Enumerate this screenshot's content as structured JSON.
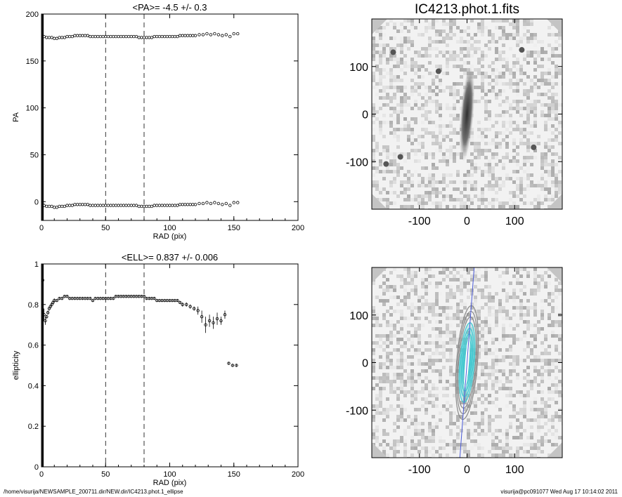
{
  "footer": {
    "left": "/home/visurija/NEWSAMPLE_200711.dir/NEW.dir/IC4213.phot.1_ellipse",
    "right": "visurija@pc091077  Wed Aug 17 10:14:02 2011"
  },
  "chart_data": [
    {
      "id": "pa",
      "type": "scatter",
      "title": "<PA>=  -4.5 +/-   0.3",
      "xlabel": "RAD (pix)",
      "ylabel": "PA",
      "xlim": [
        0,
        200
      ],
      "ylim": [
        -20,
        200
      ],
      "xticks": [
        0,
        50,
        100,
        150,
        200
      ],
      "yticks": [
        0,
        50,
        100,
        150,
        200
      ],
      "vlines": [
        50,
        80
      ],
      "series": [
        {
          "x": [
            2,
            4,
            6,
            8,
            10,
            12,
            14,
            16,
            18,
            20,
            22,
            24,
            26,
            28,
            30,
            32,
            34,
            36,
            38,
            40,
            42,
            44,
            46,
            48,
            50,
            52,
            54,
            56,
            58,
            60,
            62,
            64,
            66,
            68,
            70,
            72,
            74,
            76,
            78,
            80,
            82,
            84,
            86,
            88,
            90,
            92,
            94,
            96,
            98,
            100,
            102,
            104,
            106,
            108,
            110,
            112,
            114,
            116,
            118,
            120,
            123,
            126,
            129,
            132,
            135,
            138,
            141,
            144,
            147,
            150,
            153
          ],
          "y": [
            176,
            175,
            175,
            175,
            174,
            174,
            175,
            175,
            175,
            176,
            176,
            176,
            177,
            177,
            177,
            177,
            177,
            177,
            176,
            176,
            176,
            176,
            176,
            176,
            176,
            176,
            176,
            176,
            176,
            176,
            176,
            176,
            176,
            176,
            176,
            176,
            176,
            175,
            175,
            175,
            175,
            175,
            175,
            176,
            176,
            176,
            176,
            176,
            176,
            176,
            176,
            176,
            176,
            177,
            177,
            177,
            177,
            177,
            177,
            177,
            178,
            178,
            179,
            178,
            179,
            178,
            177,
            178,
            176,
            179,
            179
          ]
        },
        {
          "x": [
            2,
            4,
            6,
            8,
            10,
            12,
            14,
            16,
            18,
            20,
            22,
            24,
            26,
            28,
            30,
            32,
            34,
            36,
            38,
            40,
            42,
            44,
            46,
            48,
            50,
            52,
            54,
            56,
            58,
            60,
            62,
            64,
            66,
            68,
            70,
            72,
            74,
            76,
            78,
            80,
            82,
            84,
            86,
            88,
            90,
            92,
            94,
            96,
            98,
            100,
            102,
            104,
            106,
            108,
            110,
            112,
            114,
            116,
            118,
            120,
            123,
            126,
            129,
            132,
            135,
            138,
            141,
            144,
            147,
            150,
            153
          ],
          "y": [
            -4,
            -5,
            -5,
            -5,
            -6,
            -6,
            -5,
            -5,
            -5,
            -4,
            -4,
            -4,
            -3,
            -3,
            -3,
            -3,
            -3,
            -3,
            -4,
            -4,
            -4,
            -4,
            -4,
            -4,
            -4,
            -4,
            -4,
            -4,
            -4,
            -4,
            -4,
            -4,
            -4,
            -4,
            -4,
            -4,
            -4,
            -5,
            -5,
            -5,
            -5,
            -5,
            -5,
            -4,
            -4,
            -4,
            -4,
            -4,
            -4,
            -4,
            -4,
            -4,
            -4,
            -3,
            -3,
            -3,
            -3,
            -3,
            -3,
            -3,
            -2,
            -2,
            -1,
            -2,
            -1,
            -2,
            -3,
            -2,
            -4,
            -1,
            -1
          ]
        }
      ]
    },
    {
      "id": "ell",
      "type": "scatter",
      "title": "<ELL>= 0.837 +/-  0.006",
      "xlabel": "RAD (pix)",
      "ylabel": "ellipticity",
      "xlim": [
        0,
        200
      ],
      "ylim": [
        0.0,
        1.0
      ],
      "xticks": [
        0,
        50,
        100,
        150,
        200
      ],
      "yticks": [
        0.0,
        0.2,
        0.4,
        0.6,
        0.8,
        1.0
      ],
      "vlines": [
        50,
        80
      ],
      "series": [
        {
          "x": [
            1,
            2,
            3,
            4,
            5,
            6,
            7,
            8,
            9,
            10,
            12,
            14,
            16,
            18,
            20,
            22,
            24,
            26,
            28,
            30,
            32,
            34,
            36,
            38,
            40,
            42,
            44,
            46,
            48,
            50,
            52,
            54,
            56,
            58,
            60,
            62,
            64,
            66,
            68,
            70,
            72,
            74,
            76,
            78,
            80,
            82,
            84,
            86,
            88,
            90,
            92,
            94,
            96,
            98,
            100,
            102,
            104,
            106,
            108,
            110,
            113,
            116,
            119,
            122,
            125,
            128,
            131,
            134,
            137,
            140,
            143,
            146,
            149,
            152
          ],
          "y": [
            0.92,
            0.75,
            0.72,
            0.74,
            0.76,
            0.78,
            0.79,
            0.8,
            0.81,
            0.82,
            0.82,
            0.83,
            0.83,
            0.84,
            0.84,
            0.83,
            0.83,
            0.83,
            0.83,
            0.83,
            0.83,
            0.83,
            0.83,
            0.83,
            0.82,
            0.83,
            0.83,
            0.83,
            0.83,
            0.83,
            0.83,
            0.83,
            0.83,
            0.84,
            0.84,
            0.84,
            0.84,
            0.84,
            0.84,
            0.84,
            0.84,
            0.84,
            0.84,
            0.84,
            0.84,
            0.83,
            0.83,
            0.83,
            0.83,
            0.82,
            0.82,
            0.82,
            0.82,
            0.82,
            0.82,
            0.82,
            0.82,
            0.82,
            0.81,
            0.8,
            0.8,
            0.79,
            0.78,
            0.77,
            0.74,
            0.7,
            0.72,
            0.71,
            0.73,
            0.72,
            0.75,
            0.51,
            0.5,
            0.5
          ],
          "err": [
            0.02,
            0.03,
            0.02,
            0.01,
            0.01,
            0.01,
            0.01,
            0.01,
            0.01,
            0.01,
            0.005,
            0.005,
            0.005,
            0.005,
            0.005,
            0.005,
            0.005,
            0.005,
            0.005,
            0.005,
            0.005,
            0.005,
            0.005,
            0.005,
            0.005,
            0.005,
            0.005,
            0.005,
            0.005,
            0.005,
            0.005,
            0.005,
            0.005,
            0.005,
            0.005,
            0.005,
            0.005,
            0.005,
            0.005,
            0.005,
            0.005,
            0.005,
            0.005,
            0.005,
            0.005,
            0.005,
            0.005,
            0.005,
            0.005,
            0.005,
            0.005,
            0.005,
            0.005,
            0.005,
            0.005,
            0.005,
            0.005,
            0.005,
            0.005,
            0.01,
            0.01,
            0.01,
            0.01,
            0.02,
            0.03,
            0.04,
            0.03,
            0.03,
            0.03,
            0.02,
            0.02,
            0.005,
            0.005,
            0.005
          ]
        }
      ]
    },
    {
      "id": "img1",
      "type": "heatmap",
      "title": "IC4213.phot.1.fits",
      "xlim": [
        -200,
        200
      ],
      "ylim": [
        -200,
        200
      ],
      "xticks": [
        -100,
        0,
        100
      ],
      "yticks": [
        -100,
        0,
        100
      ]
    },
    {
      "id": "img2",
      "type": "heatmap",
      "title": "",
      "xlim": [
        -200,
        200
      ],
      "ylim": [
        -200,
        200
      ],
      "xticks": [
        -100,
        0,
        100
      ],
      "yticks": [
        -100,
        0,
        100
      ],
      "colors": {
        "contour": "#40c8d0",
        "line": "#4a5ad8"
      }
    }
  ]
}
